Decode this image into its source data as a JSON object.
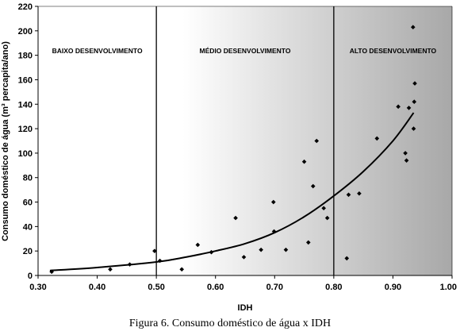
{
  "chart_data": {
    "type": "scatter",
    "xlabel": "IDH",
    "ylabel": "Consumo doméstico de água (m³ percapita/ano)",
    "xlim": [
      0.3,
      1.0
    ],
    "ylim": [
      0,
      220
    ],
    "x_ticks": [
      "0.30",
      "0.40",
      "0.50",
      "0.60",
      "0.70",
      "0.80",
      "0.90",
      "1.00"
    ],
    "y_ticks": [
      "0",
      "20",
      "40",
      "60",
      "80",
      "100",
      "120",
      "140",
      "160",
      "180",
      "200",
      "220"
    ],
    "grid": false,
    "regions": [
      {
        "label": "BAIXO DESENVOLVIMENTO",
        "from": 0.3,
        "to": 0.5
      },
      {
        "label": "MÉDIO DESENVOLVIMENTO",
        "from": 0.5,
        "to": 0.8
      },
      {
        "label": "ALTO DESENVOLVIMENTO",
        "from": 0.8,
        "to": 1.0
      }
    ],
    "dividers": [
      0.5,
      0.8
    ],
    "points": [
      {
        "x": 0.323,
        "y": 3
      },
      {
        "x": 0.422,
        "y": 5
      },
      {
        "x": 0.455,
        "y": 9
      },
      {
        "x": 0.497,
        "y": 20
      },
      {
        "x": 0.506,
        "y": 12
      },
      {
        "x": 0.543,
        "y": 5
      },
      {
        "x": 0.57,
        "y": 25
      },
      {
        "x": 0.593,
        "y": 19
      },
      {
        "x": 0.634,
        "y": 47
      },
      {
        "x": 0.648,
        "y": 15
      },
      {
        "x": 0.677,
        "y": 21
      },
      {
        "x": 0.698,
        "y": 60
      },
      {
        "x": 0.699,
        "y": 36
      },
      {
        "x": 0.719,
        "y": 21
      },
      {
        "x": 0.75,
        "y": 93
      },
      {
        "x": 0.757,
        "y": 27
      },
      {
        "x": 0.765,
        "y": 73
      },
      {
        "x": 0.771,
        "y": 110
      },
      {
        "x": 0.783,
        "y": 55
      },
      {
        "x": 0.789,
        "y": 47
      },
      {
        "x": 0.822,
        "y": 14
      },
      {
        "x": 0.825,
        "y": 66
      },
      {
        "x": 0.843,
        "y": 67
      },
      {
        "x": 0.873,
        "y": 112
      },
      {
        "x": 0.909,
        "y": 138
      },
      {
        "x": 0.921,
        "y": 100
      },
      {
        "x": 0.923,
        "y": 94
      },
      {
        "x": 0.927,
        "y": 137
      },
      {
        "x": 0.934,
        "y": 203
      },
      {
        "x": 0.935,
        "y": 120
      },
      {
        "x": 0.936,
        "y": 142
      },
      {
        "x": 0.937,
        "y": 157
      }
    ],
    "trendline": {
      "type": "exponential",
      "x": [
        0.32,
        0.4,
        0.5,
        0.55,
        0.6,
        0.65,
        0.7,
        0.75,
        0.8,
        0.85,
        0.9,
        0.935
      ],
      "y": [
        4,
        6.5,
        11,
        15,
        20,
        26,
        35,
        48,
        65,
        85,
        110,
        133
      ]
    }
  },
  "caption": "Figura 6. Consumo doméstico de água x IDH",
  "colors": {
    "point": "#000000",
    "line": "#000000",
    "bg_light": "#ffffff",
    "bg_dark": "#a8a8a8"
  }
}
